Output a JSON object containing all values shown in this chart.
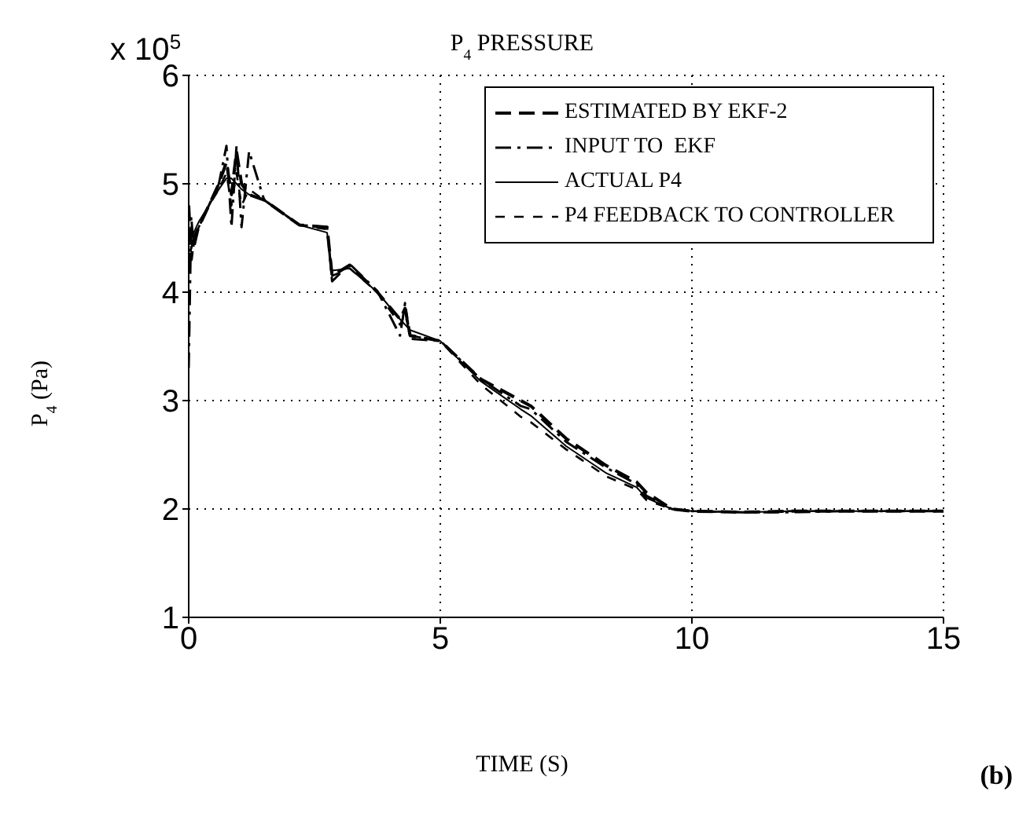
{
  "chart_data": {
    "type": "line",
    "title": "P$_{4}$ PRESSURE",
    "xlabel": "TIME (S)",
    "ylabel": "P$_{4}$ (Pa)",
    "annotations": [
      "x 10$^{5}$",
      "(b)"
    ],
    "x": [
      0,
      0.05,
      0.1,
      0.2,
      0.4,
      0.6,
      0.75,
      0.85,
      0.95,
      1.05,
      1.2,
      1.5,
      2.2,
      2.75,
      2.85,
      3.2,
      3.75,
      4.2,
      4.3,
      4.4,
      5.0,
      5.8,
      6.6,
      6.8,
      7.5,
      8.3,
      8.9,
      9.1,
      9.6,
      10,
      11,
      12,
      13,
      14,
      15
    ],
    "series": [
      {
        "name": "ESTIMATED BY EKF-2",
        "color": "#000000",
        "line_style": "dashed",
        "values": [
          4.8,
          4.3,
          4.5,
          4.6,
          4.8,
          5.0,
          5.2,
          4.9,
          5.3,
          5.0,
          4.9,
          4.85,
          4.62,
          4.6,
          4.15,
          4.25,
          4.0,
          3.75,
          3.85,
          3.6,
          3.55,
          3.2,
          3.0,
          2.95,
          2.65,
          2.4,
          2.25,
          2.15,
          2.0,
          1.98,
          1.97,
          1.98,
          1.98,
          1.98,
          1.98
        ]
      },
      {
        "name": "INPUT TO  EKF",
        "color": "#000000",
        "line_style": "dashdot",
        "values": [
          3.3,
          4.7,
          4.4,
          4.6,
          4.8,
          5.0,
          5.35,
          4.6,
          5.35,
          4.6,
          5.3,
          4.85,
          4.62,
          4.6,
          4.1,
          4.26,
          4.01,
          3.6,
          3.9,
          3.57,
          3.55,
          3.2,
          2.95,
          2.92,
          2.62,
          2.38,
          2.23,
          2.12,
          2.0,
          1.98,
          1.97,
          1.97,
          1.98,
          1.98,
          1.98
        ]
      },
      {
        "name": "ACTUAL P4",
        "color": "#000000",
        "line_style": "solid",
        "values": [
          4.5,
          4.5,
          4.55,
          4.65,
          4.8,
          4.95,
          5.05,
          5.05,
          5.0,
          4.95,
          4.9,
          4.85,
          4.62,
          4.55,
          4.2,
          4.22,
          4.0,
          3.75,
          3.7,
          3.65,
          3.55,
          3.18,
          2.92,
          2.86,
          2.58,
          2.33,
          2.2,
          2.1,
          2.0,
          1.98,
          1.97,
          1.98,
          1.98,
          1.98,
          1.98
        ]
      },
      {
        "name": "P4 FEEDBACK TO CONTROLLER",
        "color": "#000000",
        "line_style": "dashed_thin",
        "values": [
          4.6,
          4.4,
          4.5,
          4.6,
          4.8,
          4.95,
          5.1,
          4.8,
          5.1,
          4.8,
          4.95,
          4.85,
          4.62,
          4.58,
          4.15,
          4.22,
          4.0,
          3.7,
          3.8,
          3.6,
          3.55,
          3.15,
          2.85,
          2.8,
          2.55,
          2.3,
          2.18,
          2.08,
          2.0,
          1.98,
          1.97,
          1.98,
          1.98,
          1.98,
          1.98
        ]
      }
    ],
    "xlim": [
      0,
      15
    ],
    "xticks": [
      0,
      5,
      10,
      15
    ],
    "ylim": [
      1,
      6
    ],
    "yticks": [
      1,
      2,
      3,
      4,
      5,
      6
    ],
    "grid": true,
    "legend": "top right"
  }
}
